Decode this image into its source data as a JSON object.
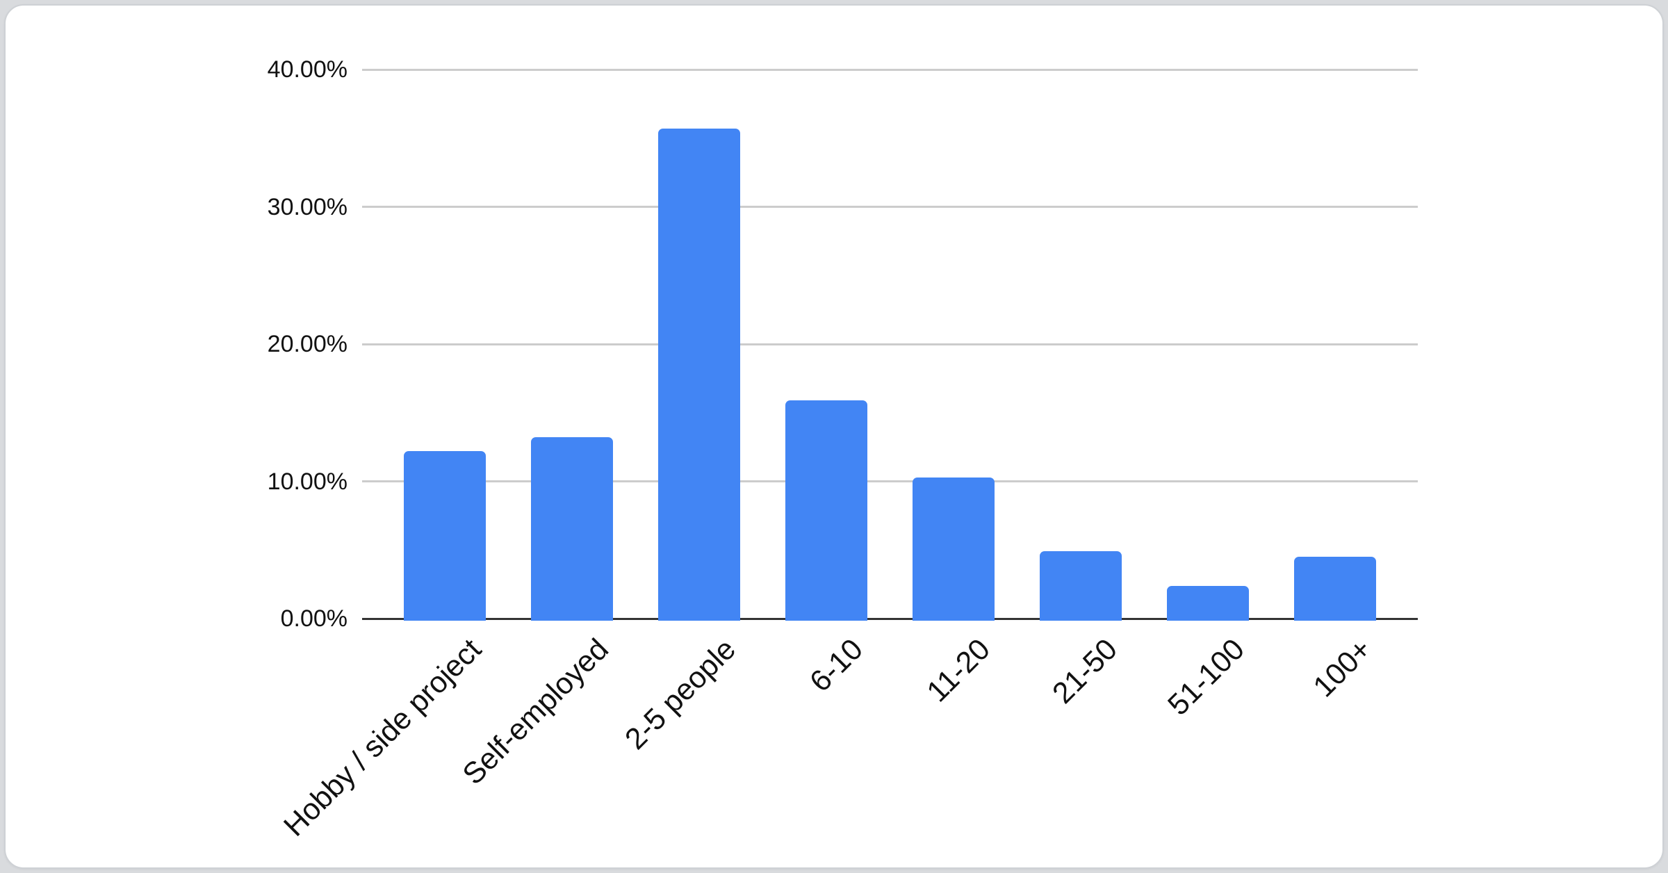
{
  "chart_data": {
    "type": "bar",
    "title": "",
    "categories": [
      "Hobby / side project",
      "Self-employed",
      "2-5 people",
      "6-10",
      "11-20",
      "21-50",
      "51-100",
      "100+"
    ],
    "values": [
      12.2,
      13.2,
      35.7,
      15.9,
      10.3,
      4.9,
      2.4,
      4.5
    ],
    "value_unit": "%",
    "ylim": [
      0,
      40
    ],
    "yticks": [
      {
        "value": 0,
        "label": "0.00%"
      },
      {
        "value": 10,
        "label": "10.00%"
      },
      {
        "value": 20,
        "label": "20.00%"
      },
      {
        "value": 30,
        "label": "30.00%"
      },
      {
        "value": 40,
        "label": "40.00%"
      }
    ],
    "xlabel": "",
    "ylabel": "",
    "grid": true,
    "legend": "none",
    "x_tick_rotation_deg": 45,
    "series_color": "#4285f4"
  },
  "colors": {
    "bar": "#4285f4",
    "gridline": "#cccccc",
    "axis_line": "#333333",
    "label_text": "#111111",
    "page_bg": "#d9dbde",
    "card_bg": "#ffffff",
    "card_border": "#ced1d5"
  }
}
